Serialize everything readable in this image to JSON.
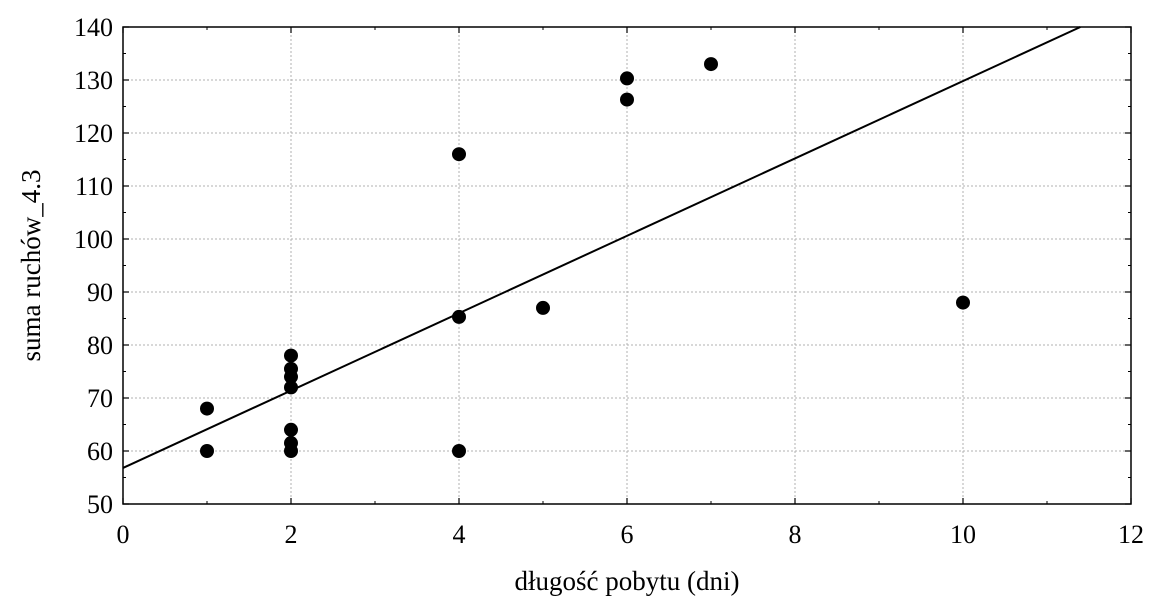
{
  "chart_data": {
    "type": "scatter",
    "title": "",
    "xlabel": "długość pobytu (dni)",
    "ylabel": "suma ruchów_4.3",
    "xlim": [
      0,
      12
    ],
    "ylim": [
      50,
      140
    ],
    "x_ticks": [
      "0",
      "2",
      "4",
      "6",
      "8",
      "10",
      "12"
    ],
    "y_ticks": [
      "50",
      "60",
      "70",
      "80",
      "90",
      "100",
      "110",
      "120",
      "130",
      "140"
    ],
    "grid": true,
    "points": [
      {
        "x": 1,
        "y": 68
      },
      {
        "x": 1,
        "y": 60
      },
      {
        "x": 2,
        "y": 78
      },
      {
        "x": 2,
        "y": 75.5
      },
      {
        "x": 2,
        "y": 74
      },
      {
        "x": 2,
        "y": 72
      },
      {
        "x": 2,
        "y": 64
      },
      {
        "x": 2,
        "y": 61.5
      },
      {
        "x": 2,
        "y": 60
      },
      {
        "x": 4,
        "y": 116
      },
      {
        "x": 4,
        "y": 85.3
      },
      {
        "x": 4,
        "y": 60
      },
      {
        "x": 5,
        "y": 87
      },
      {
        "x": 6,
        "y": 130.3
      },
      {
        "x": 6,
        "y": 126.3
      },
      {
        "x": 7,
        "y": 133
      },
      {
        "x": 10,
        "y": 88
      }
    ],
    "fit_line": {
      "intercept": 56.8,
      "slope": 7.3
    },
    "colors": {
      "points": "#000000",
      "line": "#000000",
      "grid": "#b0b0b0"
    }
  }
}
